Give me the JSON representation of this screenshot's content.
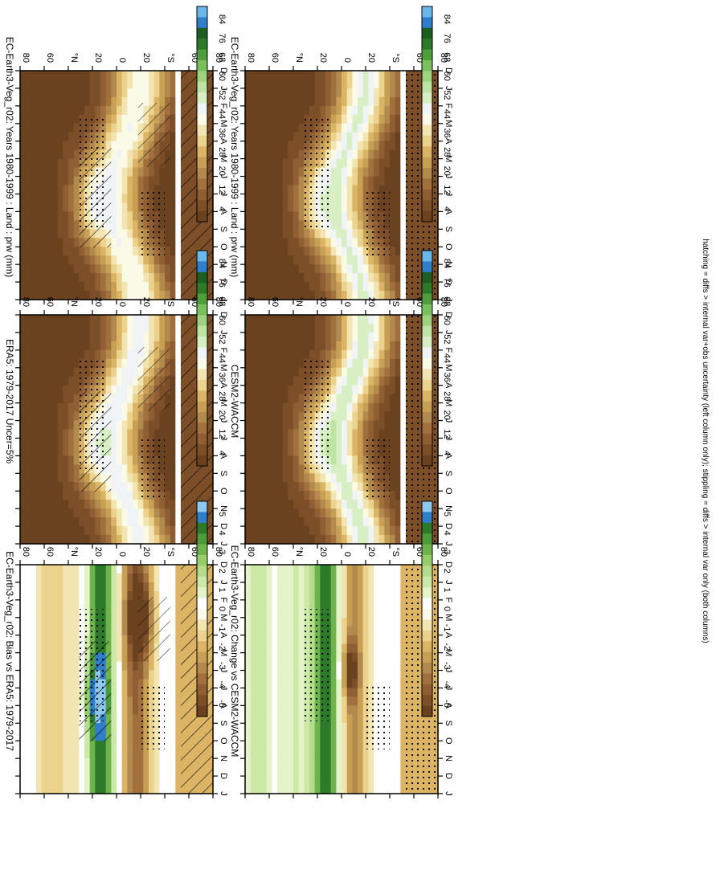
{
  "footnote": "hatching = diffs > internal var+obs uncertainty (left column only); stippling = diffs > internal var only (both columns)",
  "palettes": {
    "prw": [
      "#6b4220",
      "#7d4f29",
      "#8f5f33",
      "#a2703d",
      "#b38a4d",
      "#c8a055",
      "#dcb465",
      "#ecd38d",
      "#f3e5b2",
      "#fafae6",
      "#f0f4f7",
      "#d8efc4",
      "#bde4a2",
      "#9dd37f",
      "#79bf5c",
      "#4e9e3c",
      "#2c7a2a",
      "#1f5e22",
      "#2e7ec9",
      "#69b8eb"
    ],
    "diff": [
      "#6b4220",
      "#7d4f29",
      "#8f5f33",
      "#a2703d",
      "#b38a4d",
      "#c8a055",
      "#dcb465",
      "#ecd38d",
      "#f3e5b2",
      "#fafae6",
      "#ffffff",
      "#e5f3c8",
      "#cde9a8",
      "#b3dd8a",
      "#95cd69",
      "#6eb34b",
      "#4b9a3b",
      "#2c7a2a",
      "#2e7ec9",
      "#8cc8ef"
    ]
  },
  "colorbars": {
    "prw_labels": [
      "84",
      "76",
      "68",
      "60",
      "52",
      "44",
      "36",
      "28",
      "20",
      "12",
      "4"
    ],
    "diff_labels": [
      "5",
      "4",
      "3",
      "2",
      "1",
      "0",
      "-1",
      "-2",
      "-3",
      "-4",
      "-5"
    ]
  },
  "chart_data": [
    {
      "type": "heatmap",
      "title": "EC-Earth3-Veg_r02: Years 1980-1999 : Land : prw (mm)",
      "x": [
        "D",
        "J",
        "F",
        "M",
        "A",
        "M",
        "J",
        "J",
        "A",
        "S",
        "O",
        "N",
        "D",
        "J"
      ],
      "y_ticks": [
        "80",
        "60",
        "°N",
        "20",
        "0",
        "20",
        "°S",
        "60",
        "80"
      ],
      "zlim": [
        4,
        84
      ],
      "values_summary": {
        "equator_max": 46,
        "nh_monsoon_peak": 28,
        "midlat": 12,
        "polar": 4
      },
      "hatching": true,
      "stippling": true
    },
    {
      "type": "heatmap",
      "title": "EC-Earth3-Veg_r02: Years 1980-1999 : Land : prw (mm)",
      "x": [
        "D",
        "J",
        "F",
        "M",
        "A",
        "M",
        "J",
        "J",
        "A",
        "S",
        "O",
        "N",
        "D",
        "J"
      ],
      "y_ticks": [
        "80",
        "60",
        "°N",
        "20",
        "0",
        "20",
        "°S",
        "60",
        "80"
      ],
      "zlim": [
        4,
        84
      ],
      "values_summary": {
        "equator_max": 50,
        "nh_monsoon_peak": 28,
        "midlat": 12,
        "polar": 4
      },
      "hatching": false,
      "stippling": true
    },
    {
      "type": "heatmap",
      "title": "ERA5: 1979-2017 Uncer=5%",
      "x": [
        "D",
        "J",
        "F",
        "M",
        "A",
        "M",
        "J",
        "J",
        "A",
        "S",
        "O",
        "N",
        "D",
        "J"
      ],
      "y_ticks": [
        "80",
        "60",
        "°N",
        "20",
        "0",
        "20",
        "°S",
        "60",
        "80"
      ],
      "zlim": [
        4,
        84
      ],
      "values_summary": {
        "equator_max": 46,
        "nh_monsoon_peak": 30,
        "midlat": 12,
        "polar": 4
      },
      "hatching": true,
      "stippling": true
    },
    {
      "type": "heatmap",
      "title": "CESM2-WACCM",
      "x": [
        "D",
        "J",
        "F",
        "M",
        "A",
        "M",
        "J",
        "J",
        "A",
        "S",
        "O",
        "N",
        "D",
        "J"
      ],
      "y_ticks": [
        "80",
        "60",
        "°N",
        "20",
        "0",
        "20",
        "°S",
        "60",
        "80"
      ],
      "zlim": [
        4,
        84
      ],
      "values_summary": {
        "equator_max": 52,
        "nh_monsoon_peak": 28,
        "midlat": 12,
        "polar": 4
      },
      "hatching": false,
      "stippling": true
    },
    {
      "type": "heatmap",
      "title": "EC-Earth3-Veg_r02: Bias vs ERA5: 1979-2017",
      "x": [
        "D",
        "J",
        "F",
        "M",
        "A",
        "M",
        "J",
        "J",
        "A",
        "S",
        "O",
        "N",
        "D",
        "J"
      ],
      "y_ticks": [
        "80",
        "60",
        "°N",
        "20",
        "0",
        "20",
        "°S",
        "60",
        "80"
      ],
      "zlim": [
        -5,
        5
      ],
      "values_summary": {
        "nh_tropics_bias": -4,
        "sh_tropics_bias_mar": 5,
        "sh_tropics_bias_typical": 2
      },
      "hatching": true,
      "stippling": true
    },
    {
      "type": "heatmap",
      "title": "EC-Earth3-Veg_r02: Change vs CESM2-WACCM",
      "x": [
        "D",
        "J",
        "F",
        "M",
        "A",
        "M",
        "J",
        "J",
        "A",
        "S",
        "O",
        "N",
        "D",
        "J"
      ],
      "y_ticks": [
        "80",
        "60",
        "°N",
        "20",
        "0",
        "20",
        "°S",
        "60",
        "80"
      ],
      "zlim": [
        -5,
        5
      ],
      "values_summary": {
        "nh_tropics_diff": -4,
        "sh_tropics_diff": 2,
        "jun_peak": 5
      },
      "hatching": false,
      "stippling": true
    }
  ]
}
